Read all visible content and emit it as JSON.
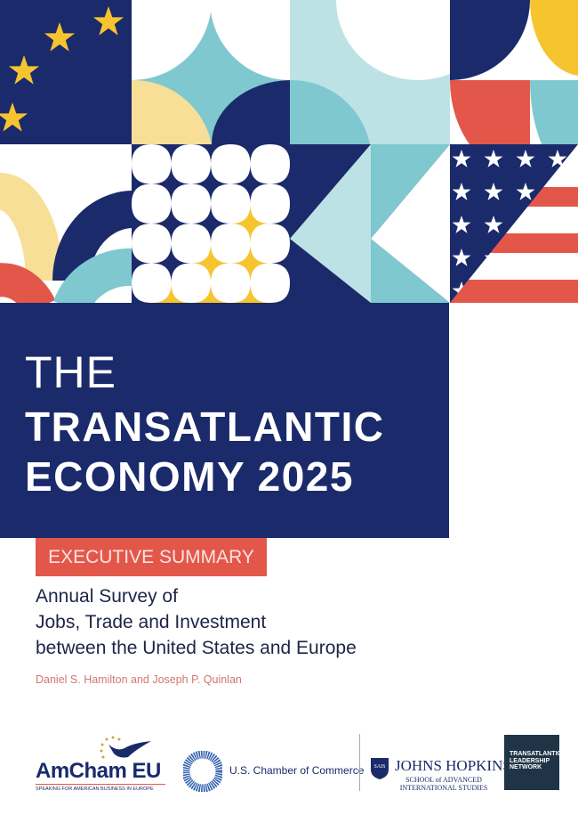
{
  "cover": {
    "title_line1": "THE",
    "title_line2": "TRANSATLANTIC",
    "title_line3": "ECONOMY 2025",
    "label": "EXECUTIVE SUMMARY",
    "subtitle_lines": [
      "Annual Survey of",
      "Jobs, Trade and Investment",
      "between the United States and Europe"
    ],
    "authors": "Daniel S. Hamilton and Joseph P. Quinlan"
  },
  "logos": {
    "amcham": {
      "name": "AmCham EU",
      "tagline": "SPEAKING FOR AMERICAN BUSINESS IN EUROPE"
    },
    "uschamber": {
      "name": "U.S. Chamber of Commerce"
    },
    "jhu": {
      "badge": "SAIS",
      "name": "JOHNS HOPKINS",
      "school": "SCHOOL of ADVANCED INTERNATIONAL STUDIES"
    },
    "tln": {
      "name": "TRANSATLANTIC LEADERSHIP NETWORK"
    }
  },
  "colors": {
    "navy": "#1b2a6b",
    "teal": "#7fc8d0",
    "light_teal": "#bde2e6",
    "yellow": "#f6c42f",
    "pale_yellow": "#f7df98",
    "red": "#e3574b"
  }
}
